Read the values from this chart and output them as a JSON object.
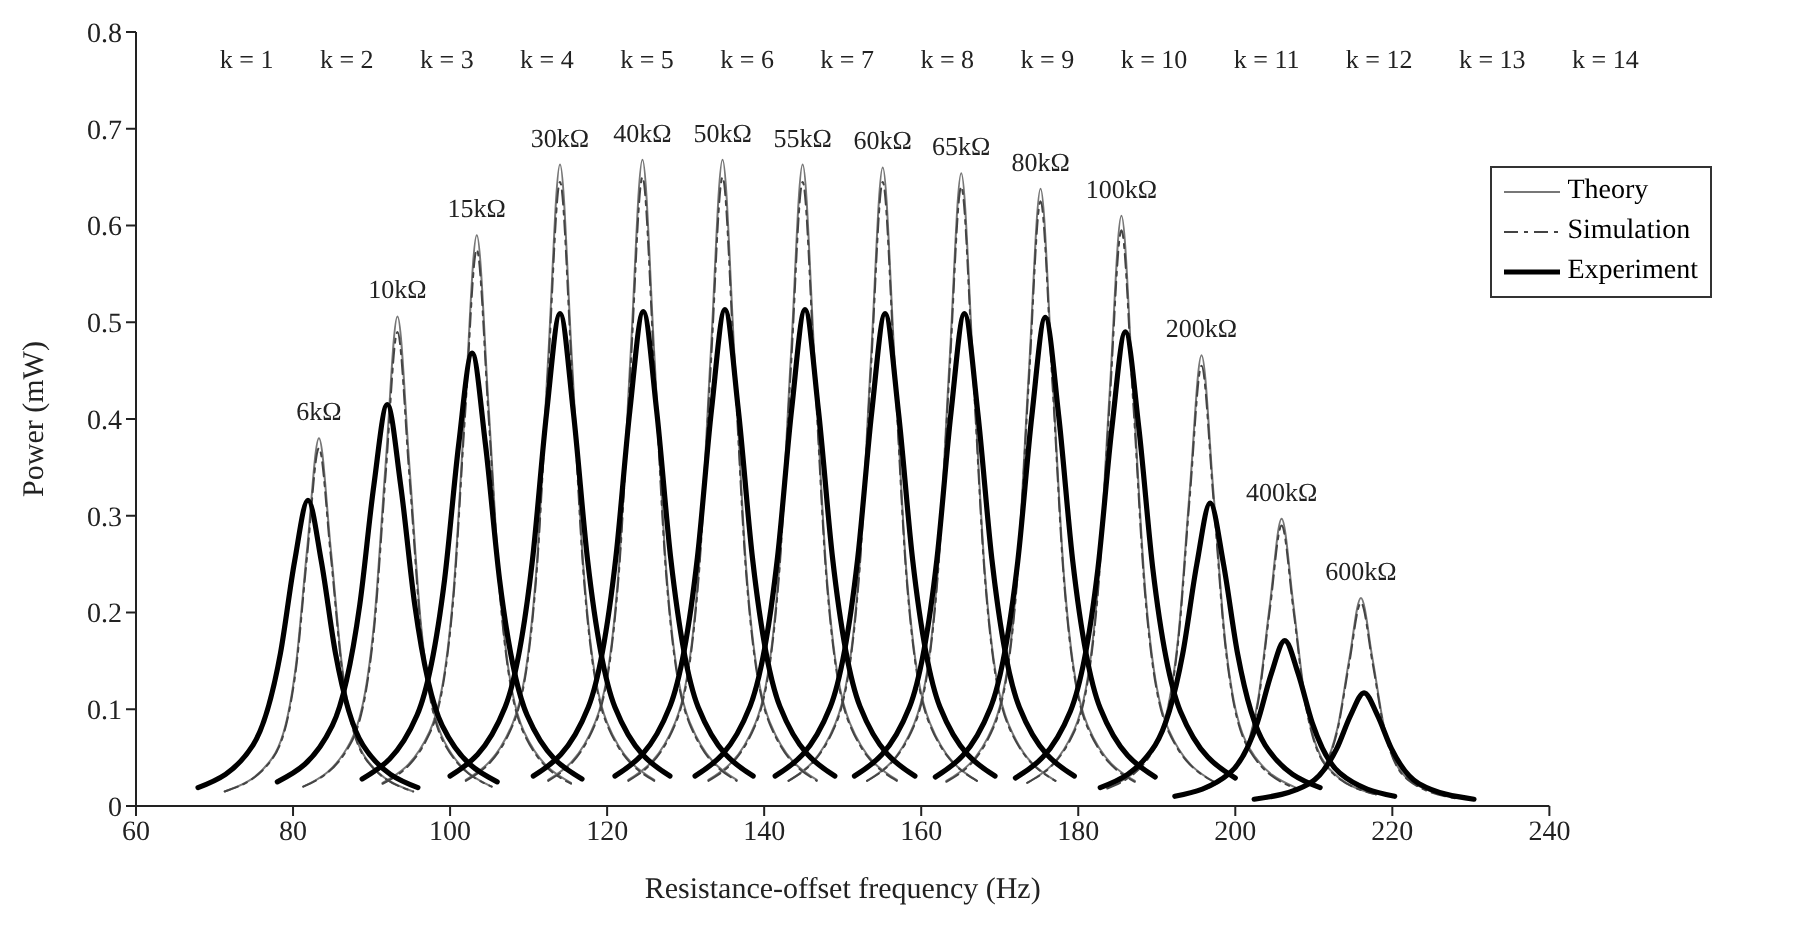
{
  "chart_data": {
    "type": "line",
    "xlabel": "Resistance-offset frequency (Hz)",
    "ylabel": "Power (mW)",
    "xlim": [
      60,
      240
    ],
    "xticks": [
      60,
      80,
      100,
      120,
      140,
      160,
      180,
      200,
      220,
      240
    ],
    "ylim": [
      0,
      0.8
    ],
    "yticks": [
      0,
      0.1,
      0.2,
      0.3,
      0.4,
      0.5,
      0.6,
      0.7,
      0.8
    ],
    "grid": false,
    "legend": "top right",
    "series": [
      {
        "name": "Theory",
        "color": "#777777",
        "line_style": "solid",
        "x": [
          71.3,
          77.3,
          80.3,
          81.8,
          83.3,
          84.8,
          86.3,
          89.3,
          95.3
        ],
        "values": [
          0.015,
          0.049,
          0.141,
          0.266,
          0.38,
          0.266,
          0.141,
          0.049,
          0.015
        ]
      },
      {
        "color": "#777777",
        "line_style": "solid",
        "x": [
          81.3,
          87.3,
          90.3,
          91.8,
          93.3,
          94.8,
          96.3,
          99.3,
          105.3
        ],
        "values": [
          0.02,
          0.066,
          0.187,
          0.354,
          0.506,
          0.354,
          0.187,
          0.066,
          0.02
        ]
      },
      {
        "color": "#777777",
        "line_style": "solid",
        "x": [
          91.4,
          97.4,
          100.4,
          101.9,
          103.4,
          104.9,
          106.4,
          109.4,
          115.4
        ],
        "values": [
          0.024,
          0.077,
          0.218,
          0.413,
          0.59,
          0.413,
          0.218,
          0.077,
          0.024
        ]
      },
      {
        "color": "#777777",
        "line_style": "solid",
        "x": [
          102,
          108,
          111,
          112.5,
          114,
          115.5,
          117,
          120,
          126
        ],
        "values": [
          0.027,
          0.086,
          0.245,
          0.464,
          0.663,
          0.464,
          0.245,
          0.086,
          0.027
        ]
      },
      {
        "color": "#777777",
        "line_style": "solid",
        "x": [
          112.5,
          118.5,
          121.5,
          123,
          124.5,
          126,
          127.5,
          130.5,
          136.5
        ],
        "values": [
          0.027,
          0.087,
          0.247,
          0.468,
          0.668,
          0.468,
          0.247,
          0.087,
          0.027
        ]
      },
      {
        "color": "#777777",
        "line_style": "solid",
        "x": [
          122.7,
          128.7,
          131.7,
          133.2,
          134.7,
          136.2,
          137.7,
          140.7,
          146.7
        ],
        "values": [
          0.027,
          0.087,
          0.247,
          0.468,
          0.668,
          0.468,
          0.247,
          0.087,
          0.027
        ]
      },
      {
        "color": "#777777",
        "line_style": "solid",
        "x": [
          132.9,
          138.9,
          141.9,
          143.4,
          144.9,
          146.4,
          147.9,
          150.9,
          156.9
        ],
        "values": [
          0.027,
          0.086,
          0.245,
          0.464,
          0.663,
          0.464,
          0.245,
          0.086,
          0.027
        ]
      },
      {
        "color": "#777777",
        "line_style": "solid",
        "x": [
          143.1,
          149.1,
          152.1,
          153.6,
          155.1,
          156.6,
          158.1,
          161.1,
          167.1
        ],
        "values": [
          0.026,
          0.086,
          0.244,
          0.462,
          0.66,
          0.462,
          0.244,
          0.086,
          0.026
        ]
      },
      {
        "color": "#777777",
        "line_style": "solid",
        "x": [
          153.1,
          159.1,
          162.1,
          163.6,
          165.1,
          166.6,
          168.1,
          171.1,
          177.1
        ],
        "values": [
          0.026,
          0.085,
          0.242,
          0.458,
          0.654,
          0.458,
          0.242,
          0.085,
          0.026
        ]
      },
      {
        "color": "#777777",
        "line_style": "solid",
        "x": [
          163.2,
          169.2,
          172.2,
          173.7,
          175.2,
          176.7,
          178.2,
          181.2,
          187.2
        ],
        "values": [
          0.026,
          0.083,
          0.236,
          0.447,
          0.638,
          0.447,
          0.236,
          0.083,
          0.026
        ]
      },
      {
        "color": "#777777",
        "line_style": "solid",
        "x": [
          173.5,
          179.5,
          182.5,
          184,
          185.5,
          187,
          188.5,
          191.5,
          197.5
        ],
        "values": [
          0.024,
          0.079,
          0.226,
          0.427,
          0.61,
          0.427,
          0.226,
          0.079,
          0.024
        ]
      },
      {
        "color": "#777777",
        "line_style": "solid",
        "x": [
          183.7,
          189.7,
          192.7,
          194.2,
          195.7,
          197.2,
          198.7,
          201.7,
          207.7
        ],
        "values": [
          0.019,
          0.061,
          0.172,
          0.326,
          0.466,
          0.326,
          0.172,
          0.061,
          0.019
        ]
      },
      {
        "color": "#777777",
        "line_style": "solid",
        "x": [
          193.9,
          199.9,
          202.9,
          204.4,
          205.9,
          207.4,
          208.9,
          211.9,
          217.9
        ],
        "values": [
          0.012,
          0.039,
          0.11,
          0.208,
          0.297,
          0.208,
          0.11,
          0.039,
          0.012
        ]
      },
      {
        "color": "#777777",
        "line_style": "solid",
        "x": [
          204,
          210,
          213,
          214.5,
          216,
          217.5,
          219,
          222,
          228
        ],
        "values": [
          0.009,
          0.028,
          0.08,
          0.151,
          0.215,
          0.151,
          0.08,
          0.028,
          0.009
        ]
      },
      {
        "name": "Simulation",
        "color": "#444444",
        "line_style": "dashed",
        "x": [
          71.3,
          77.3,
          80.3,
          81.8,
          83.3,
          84.8,
          86.3,
          89.3,
          95.3
        ],
        "values": [
          0.015,
          0.048,
          0.137,
          0.259,
          0.37,
          0.259,
          0.137,
          0.048,
          0.015
        ]
      },
      {
        "color": "#444444",
        "line_style": "dashed",
        "x": [
          81.3,
          87.3,
          90.3,
          91.8,
          93.3,
          94.8,
          96.3,
          99.3,
          105.3
        ],
        "values": [
          0.02,
          0.064,
          0.181,
          0.343,
          0.49,
          0.343,
          0.181,
          0.064,
          0.02
        ]
      },
      {
        "color": "#444444",
        "line_style": "dashed",
        "x": [
          91.4,
          97.4,
          100.4,
          101.9,
          103.4,
          104.9,
          106.4,
          109.4,
          115.4
        ],
        "values": [
          0.023,
          0.075,
          0.213,
          0.403,
          0.575,
          0.403,
          0.213,
          0.075,
          0.023
        ]
      },
      {
        "color": "#444444",
        "line_style": "dashed",
        "x": [
          102,
          108,
          111,
          112.5,
          114,
          115.5,
          117,
          120,
          126
        ],
        "values": [
          0.026,
          0.084,
          0.239,
          0.452,
          0.645,
          0.452,
          0.239,
          0.084,
          0.026
        ]
      },
      {
        "color": "#444444",
        "line_style": "dashed",
        "x": [
          112.5,
          118.5,
          121.5,
          123,
          124.5,
          126,
          127.5,
          130.5,
          136.5
        ],
        "values": [
          0.026,
          0.085,
          0.241,
          0.455,
          0.65,
          0.455,
          0.241,
          0.085,
          0.026
        ]
      },
      {
        "color": "#444444",
        "line_style": "dashed",
        "x": [
          122.7,
          128.7,
          131.7,
          133.2,
          134.7,
          136.2,
          137.7,
          140.7,
          146.7
        ],
        "values": [
          0.026,
          0.085,
          0.241,
          0.455,
          0.65,
          0.455,
          0.241,
          0.085,
          0.026
        ]
      },
      {
        "color": "#444444",
        "line_style": "dashed",
        "x": [
          132.9,
          138.9,
          141.9,
          143.4,
          144.9,
          146.4,
          147.9,
          150.9,
          156.9
        ],
        "values": [
          0.026,
          0.084,
          0.239,
          0.452,
          0.645,
          0.452,
          0.239,
          0.084,
          0.026
        ]
      },
      {
        "color": "#444444",
        "line_style": "dashed",
        "x": [
          143.1,
          149.1,
          152.1,
          153.6,
          155.1,
          156.6,
          158.1,
          161.1,
          167.1
        ],
        "values": [
          0.026,
          0.084,
          0.239,
          0.452,
          0.645,
          0.452,
          0.239,
          0.084,
          0.026
        ]
      },
      {
        "color": "#444444",
        "line_style": "dashed",
        "x": [
          153.1,
          159.1,
          162.1,
          163.6,
          165.1,
          166.6,
          168.1,
          171.1,
          177.1
        ],
        "values": [
          0.026,
          0.083,
          0.237,
          0.448,
          0.64,
          0.448,
          0.237,
          0.083,
          0.026
        ]
      },
      {
        "color": "#444444",
        "line_style": "dashed",
        "x": [
          163.2,
          169.2,
          172.2,
          173.7,
          175.2,
          176.7,
          178.2,
          181.2,
          187.2
        ],
        "values": [
          0.025,
          0.081,
          0.231,
          0.438,
          0.625,
          0.438,
          0.231,
          0.081,
          0.025
        ]
      },
      {
        "color": "#444444",
        "line_style": "dashed",
        "x": [
          173.5,
          179.5,
          182.5,
          184,
          185.5,
          187,
          188.5,
          191.5,
          197.5
        ],
        "values": [
          0.024,
          0.077,
          0.22,
          0.417,
          0.595,
          0.417,
          0.22,
          0.077,
          0.024
        ]
      },
      {
        "color": "#444444",
        "line_style": "dashed",
        "x": [
          183.7,
          189.7,
          192.7,
          194.2,
          195.7,
          197.2,
          198.7,
          201.7,
          207.7
        ],
        "values": [
          0.018,
          0.059,
          0.168,
          0.319,
          0.455,
          0.319,
          0.168,
          0.059,
          0.018
        ]
      },
      {
        "color": "#444444",
        "line_style": "dashed",
        "x": [
          193.9,
          199.9,
          202.9,
          204.4,
          205.9,
          207.4,
          208.9,
          211.9,
          217.9
        ],
        "values": [
          0.012,
          0.038,
          0.107,
          0.203,
          0.29,
          0.203,
          0.107,
          0.038,
          0.012
        ]
      },
      {
        "color": "#444444",
        "line_style": "dashed",
        "x": [
          204,
          210,
          213,
          214.5,
          216,
          217.5,
          219,
          222,
          228
        ],
        "values": [
          0.008,
          0.027,
          0.078,
          0.147,
          0.21,
          0.147,
          0.078,
          0.027,
          0.008
        ]
      },
      {
        "name": "Experiment",
        "color": "#000000",
        "line_style": "solid",
        "x": [
          67.9,
          74.9,
          78.4,
          80.2,
          81.9,
          83.6,
          85.4,
          88.9,
          95.9
        ],
        "values": [
          0.019,
          0.063,
          0.158,
          0.253,
          0.316,
          0.253,
          0.158,
          0.063,
          0.019
        ]
      },
      {
        "color": "#000000",
        "line_style": "solid",
        "x": [
          78,
          85,
          88.5,
          90.3,
          92,
          93.7,
          95.5,
          99,
          106
        ],
        "values": [
          0.025,
          0.083,
          0.208,
          0.332,
          0.415,
          0.332,
          0.208,
          0.083,
          0.025
        ]
      },
      {
        "color": "#000000",
        "line_style": "solid",
        "x": [
          88.8,
          95.8,
          99.3,
          101.1,
          102.8,
          104.5,
          106.3,
          109.8,
          116.8
        ],
        "values": [
          0.028,
          0.094,
          0.234,
          0.374,
          0.468,
          0.374,
          0.234,
          0.094,
          0.028
        ]
      },
      {
        "color": "#000000",
        "line_style": "solid",
        "x": [
          100,
          107,
          110.5,
          112.3,
          114,
          115.7,
          117.5,
          121,
          128
        ],
        "values": [
          0.031,
          0.102,
          0.255,
          0.407,
          0.509,
          0.407,
          0.255,
          0.102,
          0.031
        ]
      },
      {
        "color": "#000000",
        "line_style": "solid",
        "x": [
          110.6,
          117.6,
          121.1,
          122.9,
          124.6,
          126.3,
          128.1,
          131.6,
          138.6
        ],
        "values": [
          0.031,
          0.102,
          0.256,
          0.409,
          0.511,
          0.409,
          0.256,
          0.102,
          0.031
        ]
      },
      {
        "color": "#000000",
        "line_style": "solid",
        "x": [
          121,
          128,
          131.5,
          133.3,
          135,
          136.7,
          138.5,
          142,
          149
        ],
        "values": [
          0.031,
          0.103,
          0.257,
          0.41,
          0.513,
          0.41,
          0.257,
          0.103,
          0.031
        ]
      },
      {
        "color": "#000000",
        "line_style": "solid",
        "x": [
          131.2,
          138.2,
          141.7,
          143.5,
          145.2,
          146.9,
          148.7,
          152.2,
          159.2
        ],
        "values": [
          0.031,
          0.103,
          0.257,
          0.41,
          0.513,
          0.41,
          0.257,
          0.103,
          0.031
        ]
      },
      {
        "color": "#000000",
        "line_style": "solid",
        "x": [
          141.4,
          148.4,
          151.9,
          153.7,
          155.4,
          157.1,
          158.9,
          162.4,
          169.4
        ],
        "values": [
          0.031,
          0.102,
          0.255,
          0.407,
          0.509,
          0.407,
          0.255,
          0.102,
          0.031
        ]
      },
      {
        "color": "#000000",
        "line_style": "solid",
        "x": [
          151.5,
          158.5,
          162,
          163.8,
          165.5,
          167.2,
          169,
          172.5,
          179.5
        ],
        "values": [
          0.031,
          0.102,
          0.255,
          0.407,
          0.509,
          0.407,
          0.255,
          0.102,
          0.031
        ]
      },
      {
        "color": "#000000",
        "line_style": "solid",
        "x": [
          161.8,
          168.8,
          172.3,
          174.1,
          175.8,
          177.5,
          179.3,
          182.8,
          189.8
        ],
        "values": [
          0.03,
          0.101,
          0.253,
          0.404,
          0.505,
          0.404,
          0.253,
          0.101,
          0.03
        ]
      },
      {
        "color": "#000000",
        "line_style": "solid",
        "x": [
          172,
          179,
          182.5,
          184.3,
          186,
          187.7,
          189.5,
          193,
          200
        ],
        "values": [
          0.029,
          0.098,
          0.245,
          0.392,
          0.49,
          0.392,
          0.245,
          0.098,
          0.029
        ]
      },
      {
        "color": "#000000",
        "line_style": "solid",
        "x": [
          182.8,
          189.8,
          193.3,
          195.1,
          196.8,
          198.5,
          200.3,
          203.8,
          210.8
        ],
        "values": [
          0.019,
          0.063,
          0.157,
          0.25,
          0.313,
          0.25,
          0.157,
          0.063,
          0.019
        ]
      },
      {
        "color": "#000000",
        "line_style": "solid",
        "x": [
          192.3,
          199.3,
          202.8,
          204.6,
          206.3,
          208,
          209.8,
          213.3,
          220.3
        ],
        "values": [
          0.01,
          0.034,
          0.086,
          0.137,
          0.171,
          0.137,
          0.086,
          0.034,
          0.01
        ]
      },
      {
        "color": "#000000",
        "line_style": "solid",
        "x": [
          202.4,
          209.4,
          212.9,
          214.7,
          216.4,
          218.1,
          219.9,
          223.4,
          230.4
        ],
        "values": [
          0.007,
          0.023,
          0.059,
          0.094,
          0.117,
          0.094,
          0.059,
          0.023,
          0.007
        ]
      }
    ],
    "annotations": [
      {
        "text": "6kΩ",
        "x": 83.3,
        "y": 0.38
      },
      {
        "text": "10kΩ",
        "x": 93.3,
        "y": 0.506
      },
      {
        "text": "15kΩ",
        "x": 103.4,
        "y": 0.59
      },
      {
        "text": "30kΩ",
        "x": 114,
        "y": 0.663
      },
      {
        "text": "40kΩ",
        "x": 124.5,
        "y": 0.668
      },
      {
        "text": "50kΩ",
        "x": 134.7,
        "y": 0.668
      },
      {
        "text": "55kΩ",
        "x": 144.9,
        "y": 0.663
      },
      {
        "text": "60kΩ",
        "x": 155.1,
        "y": 0.66
      },
      {
        "text": "65kΩ",
        "x": 165.1,
        "y": 0.654
      },
      {
        "text": "80kΩ",
        "x": 175.2,
        "y": 0.638
      },
      {
        "text": "100kΩ",
        "x": 185.5,
        "y": 0.61
      },
      {
        "text": "200kΩ",
        "x": 195.7,
        "y": 0.466
      },
      {
        "text": "400kΩ",
        "x": 205.9,
        "y": 0.297
      },
      {
        "text": "600kΩ",
        "x": 216,
        "y": 0.215
      },
      "k = 1",
      "k = 2",
      "k = 3",
      "k = 4",
      "k = 5",
      "k = 6",
      "k = 7",
      "k = 8",
      "k = 9",
      "k = 10",
      "k = 11",
      "k = 12",
      "k = 13",
      "k = 14"
    ]
  }
}
